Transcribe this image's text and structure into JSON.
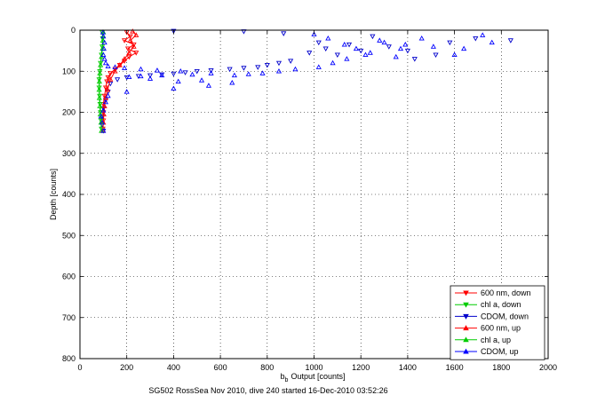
{
  "chart_data": {
    "type": "scatter",
    "xlabel": "Output [counts]",
    "xlabel_prefix": "b",
    "xlabel_subscript": "b",
    "ylabel": "Depth [counts]",
    "caption": "SG502 RossSea Nov 2010, dive 240 started 16-Dec-2010 03:52:26",
    "xlim": [
      0,
      2000
    ],
    "ylim": [
      0,
      800
    ],
    "y_reversed": true,
    "grid": true,
    "legend_position": "bottom-right",
    "x_ticks": [
      "0",
      "200",
      "400",
      "600",
      "800",
      "1000",
      "1200",
      "1400",
      "1600",
      "1800",
      "2000"
    ],
    "y_ticks": [
      "0",
      "100",
      "200",
      "300",
      "400",
      "500",
      "600",
      "700",
      "800"
    ],
    "series": [
      {
        "name": "600 nm, down",
        "color": "#ff0000",
        "marker": "triangle-down",
        "connected": true,
        "points": [
          [
            200,
            5
          ],
          [
            215,
            15
          ],
          [
            190,
            25
          ],
          [
            230,
            35
          ],
          [
            205,
            45
          ],
          [
            240,
            55
          ],
          [
            210,
            65
          ],
          [
            190,
            75
          ],
          [
            170,
            85
          ],
          [
            150,
            95
          ],
          [
            130,
            105
          ],
          [
            120,
            115
          ],
          [
            115,
            125
          ],
          [
            110,
            140
          ],
          [
            105,
            160
          ],
          [
            100,
            180
          ],
          [
            100,
            200
          ],
          [
            100,
            220
          ],
          [
            98,
            240
          ]
        ]
      },
      {
        "name": "chl a, down",
        "color": "#00cc00",
        "marker": "triangle-down",
        "connected": true,
        "points": [
          [
            95,
            5
          ],
          [
            97,
            20
          ],
          [
            95,
            40
          ],
          [
            92,
            60
          ],
          [
            88,
            80
          ],
          [
            85,
            100
          ],
          [
            82,
            120
          ],
          [
            82,
            140
          ],
          [
            84,
            160
          ],
          [
            86,
            180
          ],
          [
            88,
            200
          ],
          [
            90,
            220
          ],
          [
            92,
            240
          ]
        ]
      },
      {
        "name": "CDOM, down",
        "color": "#0000cc",
        "marker": "triangle-down",
        "connected": false,
        "points": [
          [
            400,
            2
          ],
          [
            700,
            3
          ],
          [
            870,
            8
          ],
          [
            1020,
            30
          ],
          [
            1100,
            60
          ],
          [
            1250,
            15
          ],
          [
            1320,
            40
          ],
          [
            1400,
            50
          ],
          [
            1430,
            70
          ],
          [
            1580,
            30
          ],
          [
            1690,
            20
          ],
          [
            1840,
            25
          ],
          [
            1520,
            60
          ],
          [
            1200,
            50
          ],
          [
            1150,
            35
          ],
          [
            1050,
            45
          ],
          [
            980,
            55
          ],
          [
            900,
            75
          ],
          [
            850,
            80
          ],
          [
            800,
            85
          ],
          [
            760,
            90
          ],
          [
            700,
            92
          ],
          [
            640,
            95
          ],
          [
            560,
            98
          ],
          [
            500,
            100
          ],
          [
            450,
            103
          ],
          [
            400,
            106
          ],
          [
            350,
            108
          ],
          [
            300,
            110
          ],
          [
            250,
            112
          ],
          [
            200,
            115
          ],
          [
            160,
            120
          ],
          [
            130,
            130
          ],
          [
            120,
            150
          ],
          [
            110,
            170
          ],
          [
            100,
            190
          ],
          [
            95,
            210
          ],
          [
            95,
            230
          ],
          [
            100,
            245
          ]
        ]
      },
      {
        "name": "600 nm, up",
        "color": "#ff0000",
        "marker": "triangle-up",
        "connected": true,
        "points": [
          [
            98,
            245
          ],
          [
            100,
            225
          ],
          [
            102,
            205
          ],
          [
            105,
            185
          ],
          [
            110,
            165
          ],
          [
            118,
            145
          ],
          [
            130,
            120
          ],
          [
            150,
            100
          ],
          [
            170,
            85
          ],
          [
            190,
            70
          ],
          [
            210,
            55
          ],
          [
            230,
            40
          ],
          [
            215,
            25
          ],
          [
            240,
            12
          ],
          [
            225,
            3
          ]
        ]
      },
      {
        "name": "chl a, up",
        "color": "#00cc00",
        "marker": "triangle-up",
        "connected": true,
        "points": [
          [
            92,
            245
          ],
          [
            90,
            225
          ],
          [
            87,
            205
          ],
          [
            85,
            185
          ],
          [
            83,
            165
          ],
          [
            82,
            145
          ],
          [
            83,
            125
          ],
          [
            85,
            105
          ],
          [
            88,
            85
          ],
          [
            92,
            65
          ],
          [
            96,
            45
          ],
          [
            98,
            25
          ],
          [
            100,
            5
          ]
        ]
      },
      {
        "name": "CDOM, up",
        "color": "#0000ff",
        "marker": "triangle-up",
        "connected": false,
        "points": [
          [
            100,
            245
          ],
          [
            95,
            225
          ],
          [
            90,
            210
          ],
          [
            100,
            195
          ],
          [
            110,
            175
          ],
          [
            120,
            160
          ],
          [
            200,
            150
          ],
          [
            400,
            142
          ],
          [
            550,
            135
          ],
          [
            650,
            128
          ],
          [
            520,
            122
          ],
          [
            420,
            125
          ],
          [
            300,
            118
          ],
          [
            210,
            114
          ],
          [
            260,
            112
          ],
          [
            350,
            110
          ],
          [
            480,
            108
          ],
          [
            560,
            105
          ],
          [
            430,
            100
          ],
          [
            330,
            98
          ],
          [
            260,
            95
          ],
          [
            190,
            92
          ],
          [
            150,
            90
          ],
          [
            120,
            88
          ],
          [
            110,
            80
          ],
          [
            105,
            70
          ],
          [
            100,
            60
          ],
          [
            102,
            45
          ],
          [
            105,
            30
          ],
          [
            100,
            15
          ],
          [
            98,
            5
          ],
          [
            1000,
            10
          ],
          [
            1060,
            20
          ],
          [
            1130,
            35
          ],
          [
            1180,
            45
          ],
          [
            1240,
            55
          ],
          [
            1300,
            30
          ],
          [
            1350,
            65
          ],
          [
            1370,
            45
          ],
          [
            1460,
            20
          ],
          [
            1510,
            40
          ],
          [
            1600,
            60
          ],
          [
            1640,
            45
          ],
          [
            1720,
            12
          ],
          [
            1760,
            30
          ],
          [
            1390,
            35
          ],
          [
            1280,
            25
          ],
          [
            1220,
            60
          ],
          [
            1140,
            70
          ],
          [
            1080,
            80
          ],
          [
            1020,
            90
          ],
          [
            920,
            95
          ],
          [
            850,
            100
          ],
          [
            780,
            105
          ],
          [
            720,
            107
          ],
          [
            660,
            110
          ]
        ]
      }
    ]
  }
}
